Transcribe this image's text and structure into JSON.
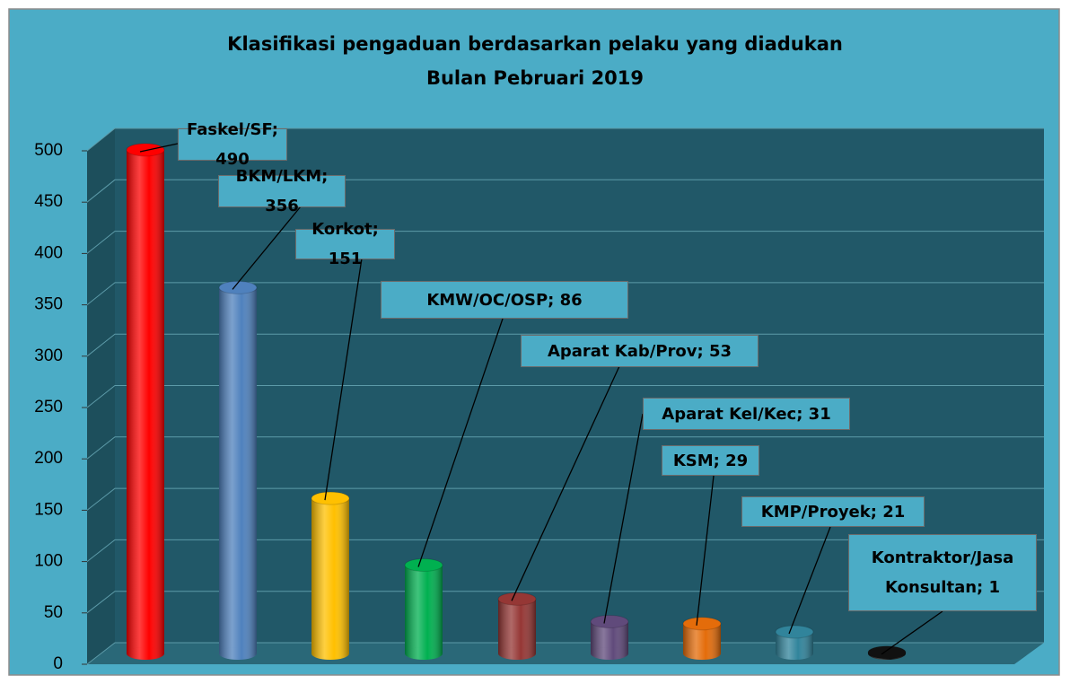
{
  "chart_data": {
    "type": "bar",
    "title": "Klasifikasi pengaduan berdasarkan pelaku yang diadukan",
    "subtitle": "Bulan Pebruari 2019",
    "values": [
      490,
      356,
      151,
      86,
      53,
      31,
      29,
      21,
      1
    ],
    "value_labels": [
      "Faskel/SF; 490",
      "BKM/LKM; 356",
      "Korkot; 151",
      "KMW/OC/OSP; 86",
      "Aparat Kab/Prov; 53",
      "Aparat Kel/Kec; 31",
      "KSM; 29",
      "KMP/Proyek; 21",
      "Kontraktor/Jasa Konsultan; 1"
    ],
    "colors": [
      "#ff0000",
      "#4f81bd",
      "#ffc000",
      "#00b050",
      "#953735",
      "#604a7b",
      "#e46c0a",
      "#31849b",
      "#111111"
    ],
    "ylim": [
      0,
      500
    ],
    "yticks": [
      0,
      50,
      100,
      150,
      200,
      250,
      300,
      350,
      400,
      450,
      500
    ],
    "grid": true
  }
}
